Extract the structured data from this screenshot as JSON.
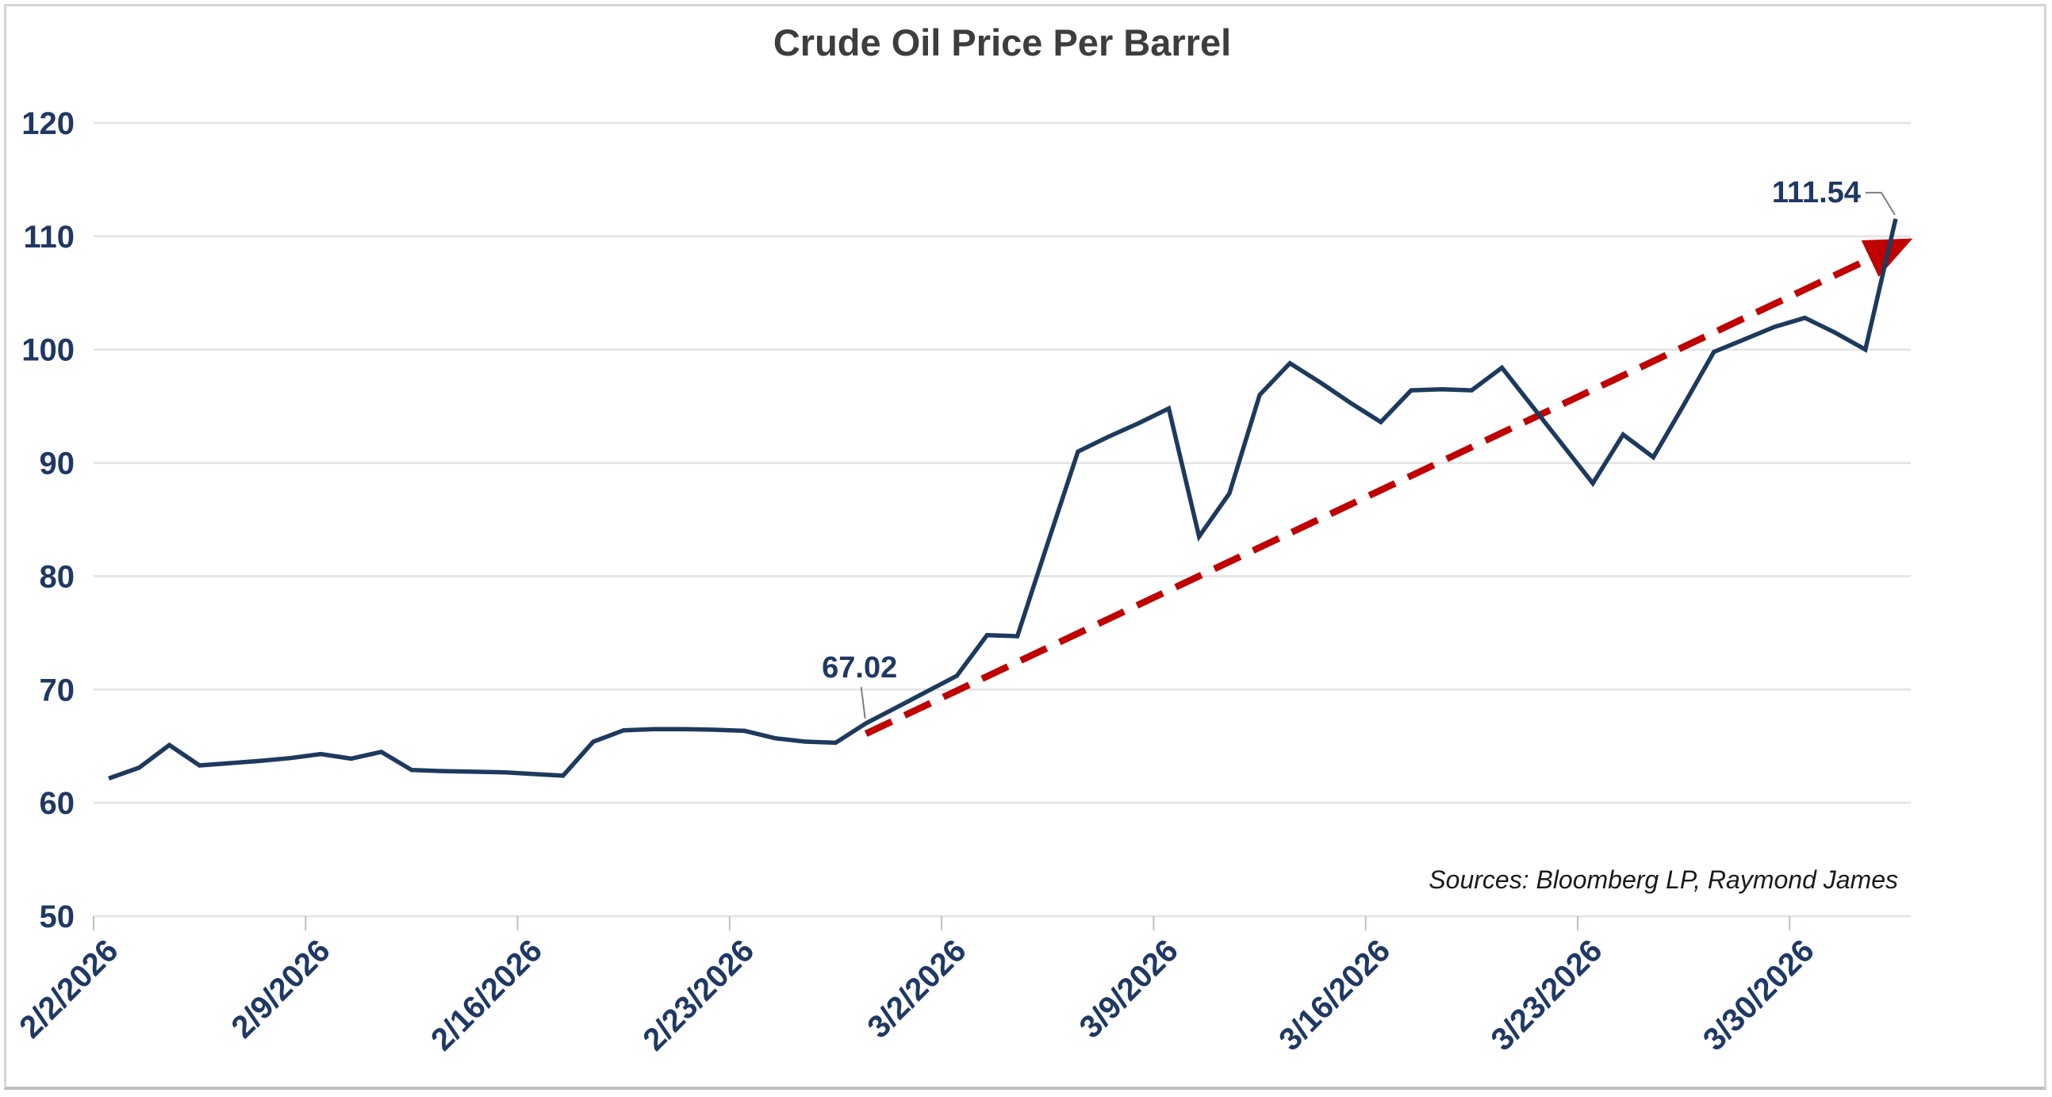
{
  "chart_data": {
    "type": "line",
    "title": "Crude Oil Price Per Barrel",
    "source_note": "Sources: Bloomberg LP, Raymond James",
    "legend": "none",
    "grid": "horizontal",
    "ylim": [
      50,
      120
    ],
    "y_ticks": [
      120,
      110,
      100,
      90,
      80,
      70,
      60,
      50
    ],
    "x_tick_every": 7,
    "x_tick_labels": [
      "2/2/2026",
      "2/9/2026",
      "2/16/2026",
      "2/23/2026",
      "3/2/2026",
      "3/9/2026",
      "3/16/2026",
      "3/23/2026",
      "3/30/2026"
    ],
    "x": [
      "2/2/2026",
      "2/3/2026",
      "2/4/2026",
      "2/5/2026",
      "2/6/2026",
      "2/7/2026",
      "2/8/2026",
      "2/9/2026",
      "2/10/2026",
      "2/11/2026",
      "2/12/2026",
      "2/13/2026",
      "2/14/2026",
      "2/15/2026",
      "2/16/2026",
      "2/17/2026",
      "2/18/2026",
      "2/19/2026",
      "2/20/2026",
      "2/21/2026",
      "2/22/2026",
      "2/23/2026",
      "2/24/2026",
      "2/25/2026",
      "2/26/2026",
      "2/27/2026",
      "2/28/2026",
      "3/1/2026",
      "3/2/2026",
      "3/3/2026",
      "3/4/2026",
      "3/5/2026",
      "3/6/2026",
      "3/7/2026",
      "3/8/2026",
      "3/9/2026",
      "3/10/2026",
      "3/11/2026",
      "3/12/2026",
      "3/13/2026",
      "3/14/2026",
      "3/15/2026",
      "3/16/2026",
      "3/17/2026",
      "3/18/2026",
      "3/19/2026",
      "3/20/2026",
      "3/21/2026",
      "3/22/2026",
      "3/23/2026",
      "3/24/2026",
      "3/25/2026",
      "3/26/2026",
      "3/27/2026",
      "3/28/2026",
      "3/29/2026",
      "3/30/2026",
      "3/31/2026",
      "4/1/2026",
      "4/2/2026"
    ],
    "series": [
      {
        "name": "Crude Oil Price Per Barrel",
        "values": [
          62.15,
          63.1,
          65.1,
          63.3,
          63.5,
          63.7,
          63.95,
          64.3,
          63.9,
          64.5,
          62.9,
          62.8,
          62.75,
          62.7,
          62.55,
          62.4,
          65.4,
          66.4,
          66.5,
          66.5,
          66.45,
          66.35,
          65.7,
          65.4,
          65.3,
          67.02,
          68.4,
          69.8,
          71.2,
          74.8,
          74.7,
          82.9,
          91.0,
          92.3,
          93.5,
          94.8,
          83.5,
          87.3,
          96.0,
          98.8,
          97.1,
          95.3,
          93.6,
          96.4,
          96.5,
          96.4,
          98.4,
          95.0,
          91.6,
          88.2,
          92.5,
          90.5,
          95.1,
          99.8,
          100.9,
          102.0,
          102.8,
          101.5,
          100.0,
          111.54
        ]
      }
    ],
    "trendline": {
      "style": "dashed",
      "arrow": true,
      "from": {
        "x_index": 25,
        "value": 66.1
      },
      "to": {
        "x_index": 59.16,
        "value": 109.3
      }
    },
    "annotations": [
      {
        "text": "67.02",
        "x_index": 25,
        "value": 67.02,
        "placement": "above"
      },
      {
        "text": "111.54",
        "x_index": 59,
        "value": 111.54,
        "placement": "left"
      }
    ],
    "colors": {
      "line": "#1d3a5e",
      "trend": "#c00000",
      "axis_label": "#1f3864",
      "annotation": "#1f3864",
      "title": "#3d3d3d",
      "grid": "#e3e3e3",
      "tick": "#bfbfbf",
      "leader": "#7f7f7f",
      "source": "#1a1a1a",
      "border": "#d4d4d4",
      "background": "#ffffff"
    }
  }
}
